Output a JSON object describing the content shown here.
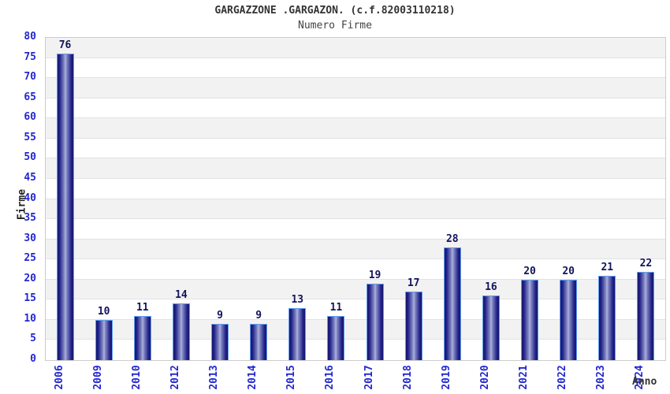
{
  "header": {
    "title": "GARGAZZONE .GARGAZON. (c.f.82003110218)",
    "subtitle": "Numero Firme"
  },
  "chart_data": {
    "type": "bar",
    "title": "GARGAZZONE .GARGAZON. (c.f.82003110218)",
    "subtitle": "Numero Firme",
    "categories": [
      "2006",
      "2009",
      "2010",
      "2012",
      "2013",
      "2014",
      "2015",
      "2016",
      "2017",
      "2018",
      "2019",
      "2020",
      "2021",
      "2022",
      "2023",
      "2024"
    ],
    "values": [
      76,
      10,
      11,
      14,
      9,
      9,
      13,
      11,
      19,
      17,
      28,
      16,
      20,
      20,
      21,
      22
    ],
    "xlabel": "Anno",
    "ylabel": "Firme",
    "ylim": [
      0,
      80
    ],
    "ytick_step": 5,
    "legend": "none",
    "grid": "horizontal gridlines every 5 units with alternating white/gray bands",
    "colors": {
      "bar_edge": "#15156b",
      "bar_center": "#b0b5de",
      "bar_border": "#5e9ef0",
      "axis_tick_label": "#2327cf",
      "value_label": "#13135e",
      "band_gray": "#f2f2f2",
      "gridline": "#e2e2e2",
      "plot_border": "#cccccc",
      "title_color": "#333333"
    }
  }
}
